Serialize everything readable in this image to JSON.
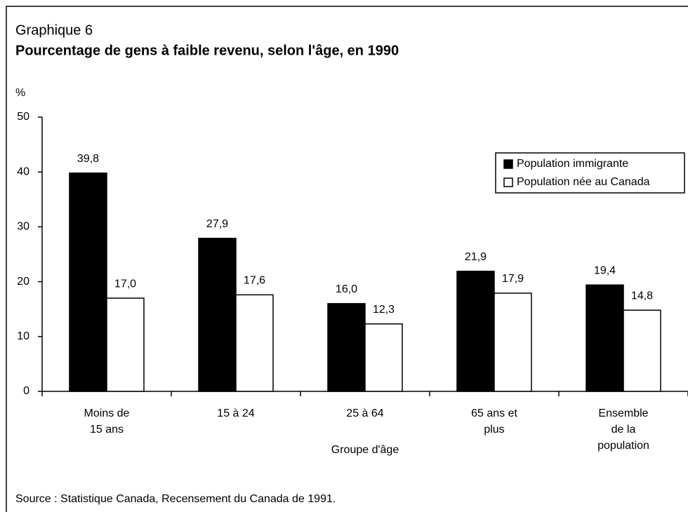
{
  "chart_data": {
    "type": "bar",
    "label": "Graphique 6",
    "title": "Pourcentage de gens à faible revenu, selon l'âge, en 1990",
    "y_label": "%",
    "x_label": "Groupe d'âge",
    "source": "Source : Statistique Canada, Recensement du Canada de 1991.",
    "categories": [
      [
        "Moins de",
        "15 ans"
      ],
      [
        "15 à 24"
      ],
      [
        "25 à 64"
      ],
      [
        "65 ans et",
        "plus"
      ],
      [
        "Ensemble",
        "de la",
        "population"
      ]
    ],
    "series": [
      {
        "name": "Population immigrante",
        "color": "#000000",
        "values": [
          39.8,
          27.9,
          16.0,
          21.9,
          19.4
        ],
        "value_labels": [
          "39,8",
          "27,9",
          "16,0",
          "21,9",
          "19,4"
        ]
      },
      {
        "name": "Population née au Canada",
        "color": "#ffffff",
        "values": [
          17.0,
          17.6,
          12.3,
          17.9,
          14.8
        ],
        "value_labels": [
          "17,0",
          "17,6",
          "12,3",
          "17,9",
          "14,8"
        ]
      }
    ],
    "ylim": [
      0,
      50
    ],
    "yticks": [
      0,
      10,
      20,
      30,
      40,
      50
    ],
    "legend": "upper right"
  }
}
